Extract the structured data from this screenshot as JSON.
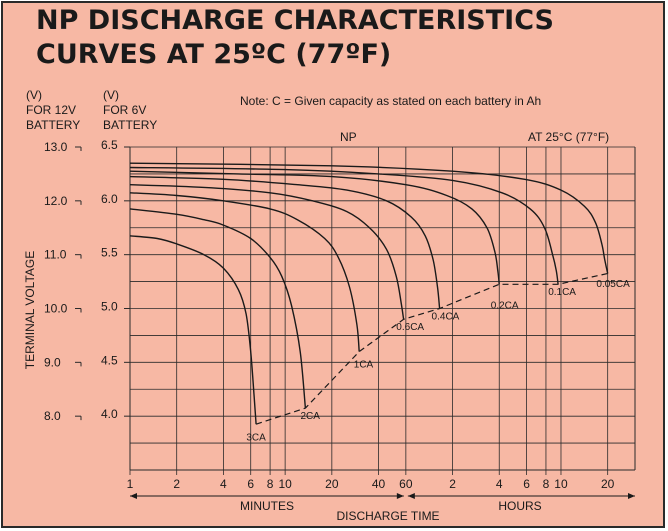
{
  "title_lines": [
    "NP DISCHARGE CHARACTERISTICS",
    "CURVES AT 25ºC (77ºF)"
  ],
  "note": "Note: C = Given capacity as stated on each battery in Ah",
  "subtitle_center": "NP",
  "subtitle_right": "AT 25°C (77°F)",
  "colors": {
    "background": "#f7b8a4",
    "line": "#1a1a1a",
    "grid": "#2a2a2a"
  },
  "chart_data": {
    "type": "line",
    "title": "NP DISCHARGE CHARACTERISTICS CURVES AT 25ºC (77ºF)",
    "xlabel": "DISCHARGE TIME",
    "x_scale": "log",
    "x_segments": [
      {
        "label": "MINUTES",
        "ticks": [
          "1",
          "2",
          "4",
          "6",
          "8",
          "10",
          "20",
          "40",
          "60"
        ]
      },
      {
        "label": "HOURS",
        "ticks": [
          "2",
          "4",
          "6",
          "8",
          "10",
          "20"
        ]
      }
    ],
    "xlim_minutes": [
      1,
      1800
    ],
    "ylabel": "TERMINAL VOLTAGE",
    "y_axes": [
      {
        "header": [
          "(V)",
          "FOR 12V",
          "BATTERY"
        ],
        "ticks": [
          "13.0",
          "12.0",
          "11.0",
          "10.0",
          "9.0",
          "8.0"
        ],
        "values": [
          13.0,
          12.0,
          11.0,
          10.0,
          9.0,
          8.0
        ]
      },
      {
        "header": [
          "(V)",
          "FOR 6V",
          "BATTERY"
        ],
        "ticks": [
          "6.5",
          "6.0",
          "5.5",
          "5.0",
          "4.5",
          "4.0"
        ],
        "values": [
          6.5,
          6.0,
          5.5,
          5.0,
          4.5,
          4.0
        ]
      }
    ],
    "ylim": [
      7.0,
      13.0
    ],
    "grid": true,
    "x_unit": "minutes",
    "series": [
      {
        "name": "3CA",
        "x": [
          1,
          1.5,
          2,
          3,
          4,
          5,
          5.6,
          6.0,
          6.3,
          6.5
        ],
        "y": [
          11.35,
          11.3,
          11.2,
          11.0,
          10.75,
          10.35,
          9.9,
          9.2,
          8.4,
          7.85
        ]
      },
      {
        "name": "2CA",
        "x": [
          1,
          2,
          3,
          4,
          6,
          8,
          9.5,
          11,
          12.5,
          13.5
        ],
        "y": [
          11.85,
          11.75,
          11.65,
          11.55,
          11.3,
          10.95,
          10.6,
          10.05,
          9.2,
          8.15
        ]
      },
      {
        "name": "1CA",
        "x": [
          1,
          2,
          4,
          8,
          12,
          18,
          22,
          26,
          29,
          30
        ],
        "y": [
          12.15,
          12.1,
          12.0,
          11.85,
          11.65,
          11.3,
          10.95,
          10.4,
          9.7,
          9.2
        ]
      },
      {
        "name": "0.6CA",
        "x": [
          1,
          3,
          8,
          15,
          25,
          35,
          45,
          52,
          56,
          58
        ],
        "y": [
          12.3,
          12.25,
          12.15,
          12.0,
          11.8,
          11.5,
          11.1,
          10.6,
          10.1,
          9.8
        ]
      },
      {
        "name": "0.4CA",
        "x": [
          1,
          4,
          12,
          25,
          45,
          65,
          80,
          90,
          96,
          99
        ],
        "y": [
          12.45,
          12.4,
          12.3,
          12.2,
          12.0,
          11.7,
          11.35,
          10.9,
          10.4,
          10.0
        ]
      },
      {
        "name": "0.2CA",
        "x": [
          1,
          5,
          20,
          60,
          110,
          160,
          200,
          225,
          235,
          240
        ],
        "y": [
          12.55,
          12.5,
          12.45,
          12.3,
          12.1,
          11.85,
          11.5,
          11.05,
          10.7,
          10.45
        ]
      },
      {
        "name": "0.1CA",
        "x": [
          1,
          10,
          40,
          120,
          250,
          380,
          470,
          530,
          560,
          575
        ],
        "y": [
          12.62,
          12.58,
          12.5,
          12.38,
          12.15,
          11.85,
          11.5,
          11.0,
          10.7,
          10.45
        ]
      },
      {
        "name": "0.05CA",
        "x": [
          1,
          20,
          120,
          350,
          600,
          850,
          1000,
          1100,
          1150,
          1200
        ],
        "y": [
          12.7,
          12.65,
          12.55,
          12.4,
          12.2,
          11.9,
          11.6,
          11.2,
          10.9,
          10.65
        ]
      },
      {
        "name": "end-voltage",
        "dashed": true,
        "x": [
          6.5,
          13.5,
          30,
          58,
          99,
          240,
          575,
          1200
        ],
        "y": [
          7.85,
          8.15,
          9.2,
          9.8,
          10.0,
          10.45,
          10.45,
          10.65
        ]
      }
    ],
    "data_labels": [
      {
        "text": "3CA",
        "x": 6.5,
        "y": 7.55
      },
      {
        "text": "2CA",
        "x": 14.5,
        "y": 7.95
      },
      {
        "text": "1CA",
        "x": 32,
        "y": 8.9
      },
      {
        "text": "0.6CA",
        "x": 64,
        "y": 9.6
      },
      {
        "text": "0.4CA",
        "x": 108,
        "y": 9.8
      },
      {
        "text": "0.2CA",
        "x": 260,
        "y": 10.0
      },
      {
        "text": "0.1CA",
        "x": 610,
        "y": 10.25
      },
      {
        "text": "0.05CA",
        "x": 1300,
        "y": 10.4
      }
    ]
  }
}
